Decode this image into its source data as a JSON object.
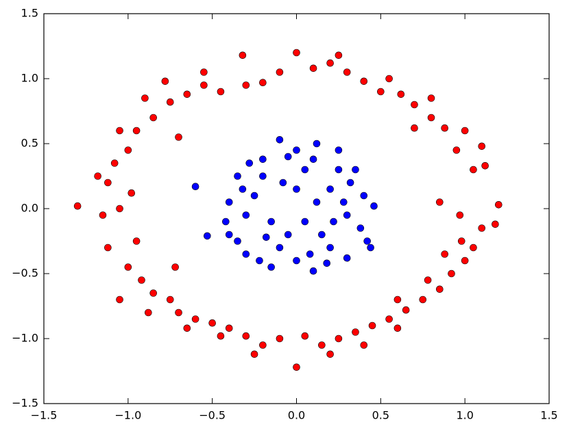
{
  "chart_data": {
    "type": "scatter",
    "xlim": [
      -1.5,
      1.5
    ],
    "ylim": [
      -1.5,
      1.5
    ],
    "xticks": [
      {
        "value": -1.5,
        "label": "−1.5"
      },
      {
        "value": -1.0,
        "label": "−1.0"
      },
      {
        "value": -0.5,
        "label": "−0.5"
      },
      {
        "value": 0.0,
        "label": "0.0"
      },
      0.5,
      {
        "value": 1.0,
        "label": "1.0"
      },
      1.5
    ],
    "yticks": [
      {
        "value": -1.5,
        "label": "−1.5"
      },
      {
        "value": -1.0,
        "label": "−1.0"
      },
      {
        "value": -0.5,
        "label": "−0.5"
      },
      {
        "value": 0.0,
        "label": "0.0"
      },
      0.5,
      {
        "value": 1.0,
        "label": "1.0"
      },
      1.5
    ],
    "grid": false,
    "series": [
      {
        "color": "#ff0000",
        "x": [
          -1.3,
          1.2,
          1.18,
          1.12,
          0.97,
          1.05,
          0.95,
          0.88,
          0.8,
          0.7,
          0.62,
          0.5,
          0.4,
          0.3,
          0.2,
          0.1,
          0.0,
          -0.1,
          -0.2,
          -0.3,
          -0.32,
          -0.45,
          -0.55,
          -0.65,
          -0.75,
          -0.78,
          -0.85,
          -0.95,
          -1.0,
          -1.08,
          -1.12,
          -0.98,
          -1.05,
          -1.15,
          -1.12,
          -0.95,
          -1.0,
          -0.92,
          -0.85,
          -0.75,
          -0.7,
          -0.6,
          -0.5,
          -0.4,
          -0.3,
          -0.2,
          -0.1,
          0.0,
          0.05,
          0.15,
          0.25,
          0.35,
          0.45,
          0.55,
          0.65,
          0.75,
          0.85,
          0.92,
          1.0,
          1.05,
          1.1,
          0.98,
          0.88,
          0.78,
          0.6,
          0.4,
          0.2,
          -0.25,
          -0.45,
          -0.65,
          -0.88,
          -1.05,
          -1.18,
          -1.05,
          -0.9,
          -0.55,
          0.25,
          0.55,
          0.8,
          1.0,
          1.1,
          0.85,
          0.7,
          -0.7,
          -0.72,
          0.6
        ],
        "values": [
          0.02,
          0.03,
          -0.12,
          0.33,
          -0.05,
          0.3,
          0.45,
          0.62,
          0.7,
          0.8,
          0.88,
          0.9,
          0.98,
          1.05,
          1.12,
          1.08,
          1.2,
          1.05,
          0.97,
          0.95,
          1.18,
          0.9,
          0.95,
          0.88,
          0.82,
          0.98,
          0.7,
          0.6,
          0.45,
          0.35,
          0.2,
          0.12,
          0.0,
          -0.05,
          -0.3,
          -0.25,
          -0.45,
          -0.55,
          -0.65,
          -0.7,
          -0.8,
          -0.85,
          -0.88,
          -0.92,
          -0.98,
          -1.05,
          -1.0,
          -1.22,
          -0.98,
          -1.05,
          -1.0,
          -0.95,
          -0.9,
          -0.85,
          -0.78,
          -0.7,
          -0.62,
          -0.5,
          -0.4,
          -0.3,
          -0.15,
          -0.25,
          -0.35,
          -0.55,
          -0.92,
          -1.05,
          -1.12,
          -1.12,
          -0.98,
          -0.92,
          -0.8,
          -0.7,
          0.25,
          0.6,
          0.85,
          1.05,
          1.18,
          1.0,
          0.85,
          0.6,
          0.48,
          0.05,
          0.62,
          0.55,
          -0.45,
          -0.7
        ]
      },
      {
        "color": "#0000ff",
        "x": [
          -0.6,
          -0.53,
          0.46,
          -0.1,
          0.12,
          -0.2,
          0.25,
          -0.35,
          0.35,
          -0.4,
          0.4,
          -0.4,
          0.42,
          -0.3,
          0.3,
          -0.15,
          0.1,
          0.0,
          -0.05,
          0.05,
          -0.25,
          0.2,
          -0.15,
          0.15,
          0.0,
          -0.3,
          0.3,
          -0.1,
          0.2,
          -0.2,
          0.1,
          0.25,
          -0.35,
          0.38,
          -0.05,
          0.05,
          0.32,
          -0.28,
          0.18,
          -0.22,
          0.0,
          0.22,
          -0.42,
          0.44,
          -0.08,
          0.12,
          -0.18,
          0.28,
          -0.32,
          0.08
        ],
        "values": [
          0.17,
          -0.21,
          0.02,
          0.53,
          0.5,
          0.38,
          0.45,
          0.25,
          0.3,
          0.05,
          0.1,
          -0.2,
          -0.25,
          -0.35,
          -0.38,
          -0.45,
          -0.48,
          -0.4,
          0.4,
          0.3,
          0.1,
          0.15,
          -0.1,
          -0.2,
          0.15,
          -0.05,
          -0.05,
          -0.3,
          -0.3,
          0.25,
          0.38,
          0.3,
          -0.25,
          -0.15,
          -0.2,
          -0.1,
          0.2,
          0.35,
          -0.42,
          -0.4,
          0.45,
          -0.1,
          -0.1,
          -0.3,
          0.2,
          0.05,
          -0.22,
          0.05,
          0.15,
          -0.35
        ]
      }
    ]
  }
}
